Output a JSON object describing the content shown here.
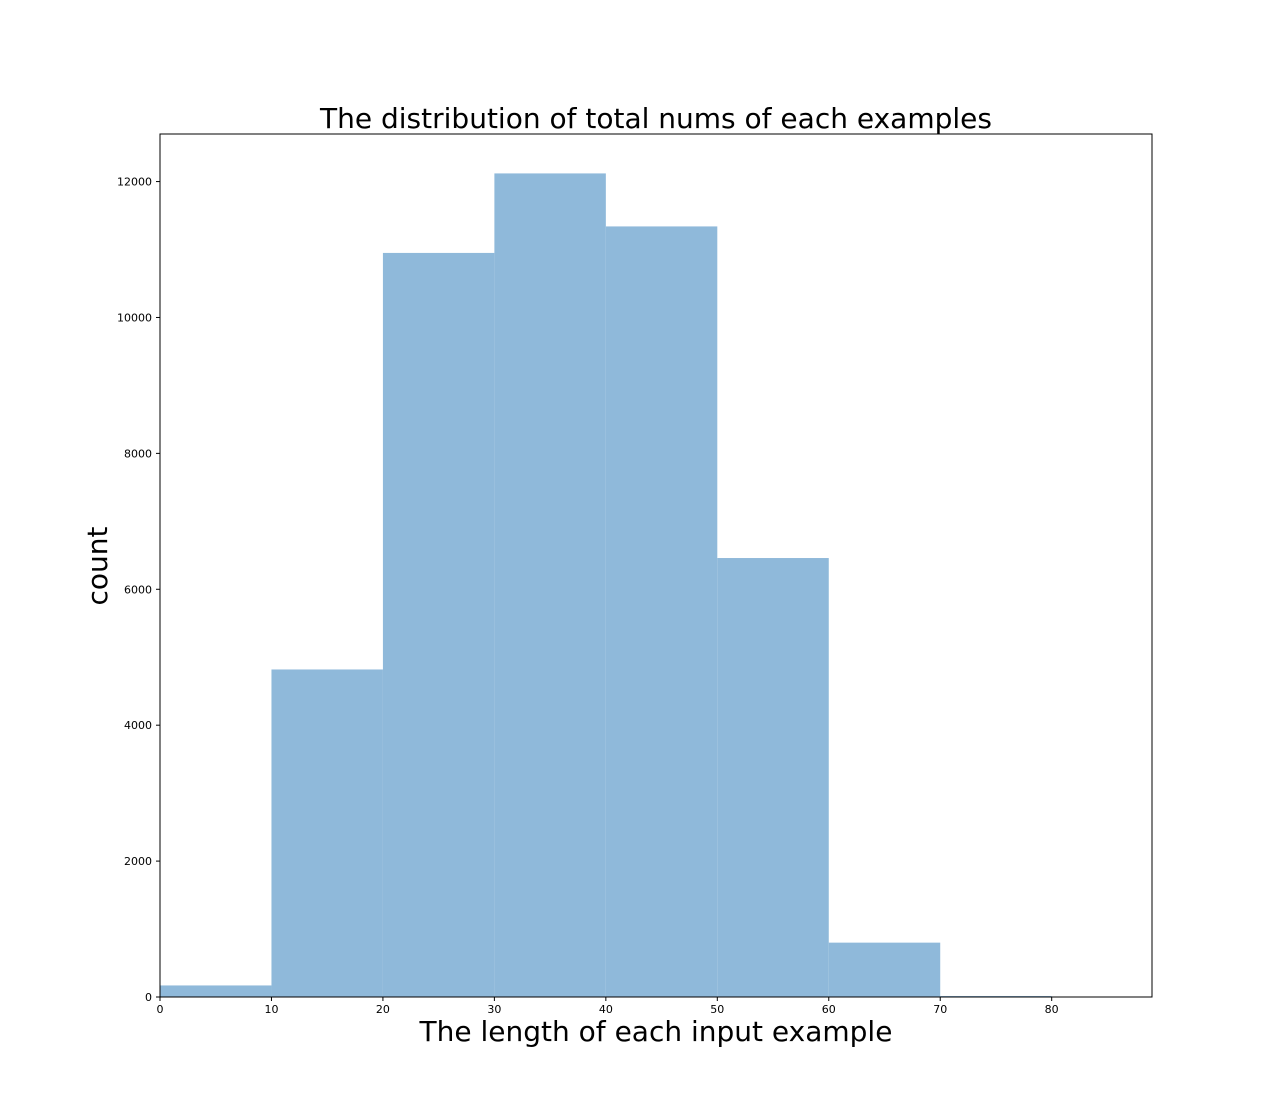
{
  "chart_data": {
    "type": "bar",
    "title": "The distribution of total nums of each examples",
    "xlabel": "The length of each input example",
    "ylabel": "count",
    "bin_edges": [
      0,
      10,
      20,
      30,
      40,
      50,
      60,
      70,
      80
    ],
    "values": [
      170,
      4820,
      10950,
      12120,
      11340,
      6460,
      800,
      15
    ],
    "xlim": [
      0,
      89
    ],
    "ylim": [
      0,
      12700
    ],
    "x_ticks": [
      "0",
      "10",
      "20",
      "30",
      "40",
      "50",
      "60",
      "70",
      "80"
    ],
    "y_ticks": [
      "0",
      "2000",
      "4000",
      "6000",
      "8000",
      "10000",
      "12000"
    ],
    "bar_color": "#8fb9da",
    "grid": false,
    "legend": "none"
  }
}
